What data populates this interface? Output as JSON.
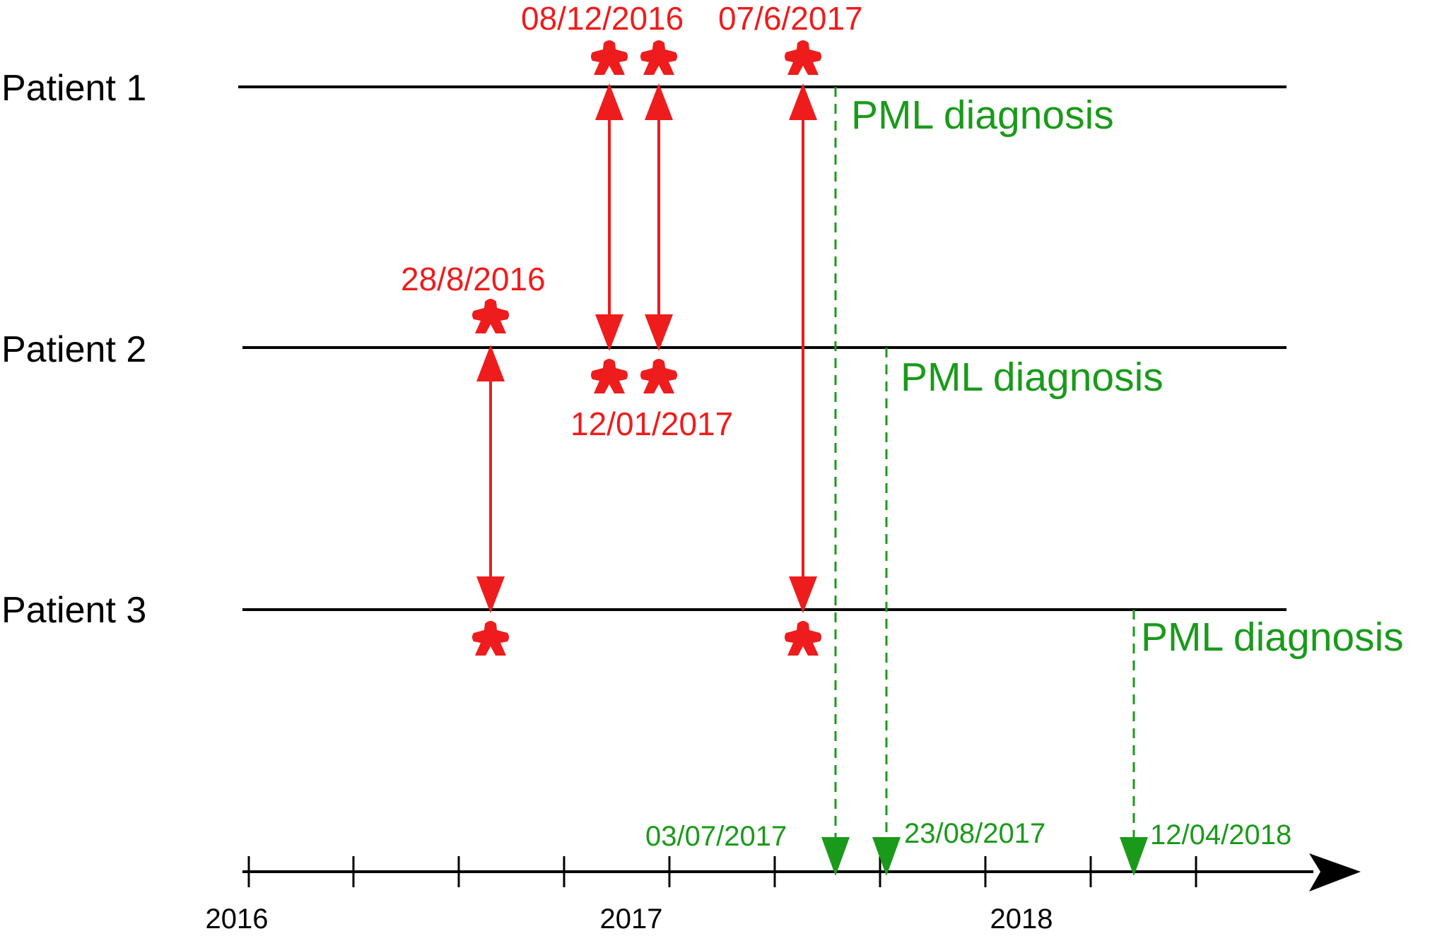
{
  "colors": {
    "line": "#000000",
    "contact": "#ee1c1c",
    "diagnosis": "#1a9a1a"
  },
  "patients": [
    {
      "label": "Patient 1"
    },
    {
      "label": "Patient 2"
    },
    {
      "label": "Patient 3"
    }
  ],
  "contact_dates": {
    "d1": "08/12/2016",
    "d2": "07/6/2017",
    "d3": "28/8/2016",
    "d4": "12/01/2017"
  },
  "pml_label": "PML diagnosis",
  "diagnosis_dates": [
    "03/07/2017",
    "23/08/2017",
    "12/04/2018"
  ],
  "axis": {
    "years": [
      "2016",
      "2017",
      "2018"
    ]
  },
  "icon": "meeple-person-icon"
}
